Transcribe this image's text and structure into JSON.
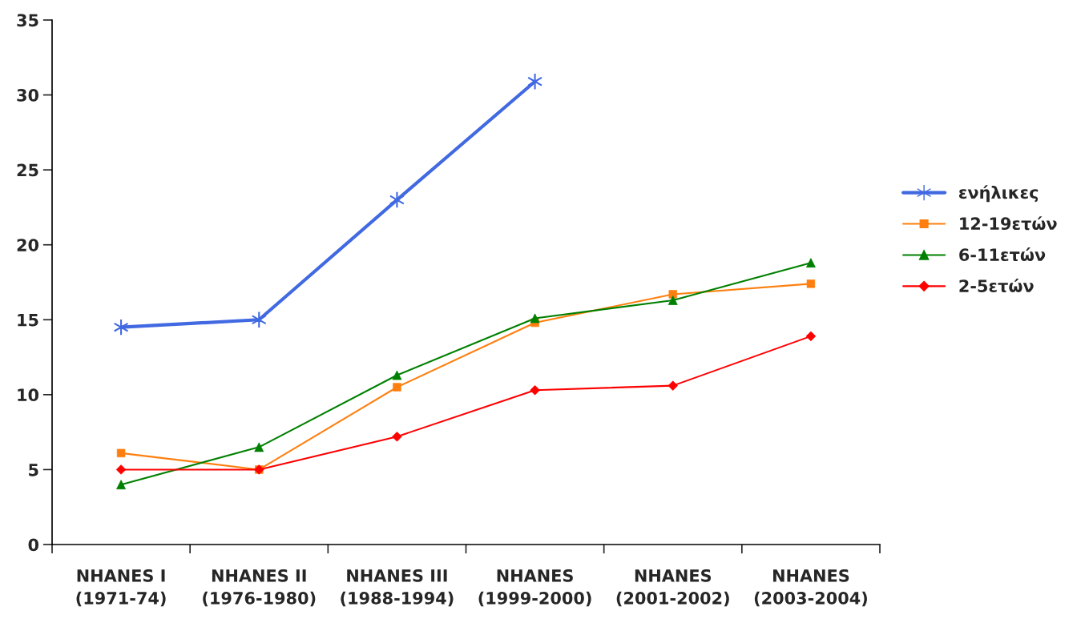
{
  "chart_data": {
    "type": "line",
    "categories": [
      "NHANES I\n(1971-74)",
      "NHANES II\n(1976-1980)",
      "NHANES III\n(1988-1994)",
      "NHANES\n(1999-2000)",
      "NHANES\n(2001-2002)",
      "NHANES\n(2003-2004)"
    ],
    "series": [
      {
        "name": "ενήλικες",
        "color": "#4169e1",
        "marker": "cross",
        "values": [
          14.5,
          15.0,
          23.0,
          30.9,
          null,
          null
        ]
      },
      {
        "name": "12-19ετών",
        "color": "#ff7f0e",
        "marker": "square",
        "values": [
          6.1,
          5.0,
          10.5,
          14.8,
          16.7,
          17.4
        ]
      },
      {
        "name": "6-11ετών",
        "color": "#008000",
        "marker": "triangle",
        "values": [
          4.0,
          6.5,
          11.3,
          15.1,
          16.3,
          18.8
        ]
      },
      {
        "name": "2-5ετών",
        "color": "#ff0000",
        "marker": "diamond",
        "values": [
          5.0,
          5.0,
          7.2,
          10.3,
          10.6,
          13.9
        ]
      }
    ],
    "ylim": [
      0,
      35
    ],
    "yticks": [
      0,
      5,
      10,
      15,
      20,
      25,
      30,
      35
    ],
    "grid": false,
    "legend": "right",
    "line_style": "solid"
  }
}
